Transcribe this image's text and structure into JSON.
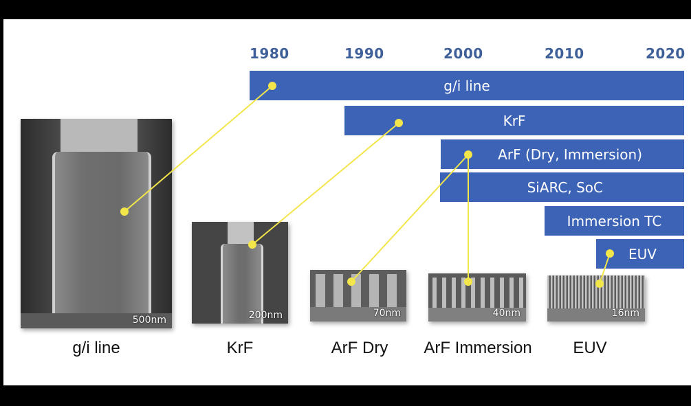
{
  "years": [
    "1980",
    "1990",
    "2000",
    "2010",
    "2020"
  ],
  "bars": [
    {
      "label": "g/i line"
    },
    {
      "label": "KrF"
    },
    {
      "label": "ArF (Dry, Immersion)"
    },
    {
      "label": "SiARC, SoC"
    },
    {
      "label": "Immersion TC"
    },
    {
      "label": "EUV"
    }
  ],
  "images": [
    {
      "scale": "500nm",
      "caption": "g/i line"
    },
    {
      "scale": "200nm",
      "caption": "KrF"
    },
    {
      "scale": "70nm",
      "caption": "ArF Dry"
    },
    {
      "scale": "40nm",
      "caption": "ArF Immersion"
    },
    {
      "scale": "16nm",
      "caption": "EUV"
    }
  ],
  "colors": {
    "bar": "#3c63b5",
    "year": "#3f5f99",
    "connector": "#f2e64b"
  }
}
